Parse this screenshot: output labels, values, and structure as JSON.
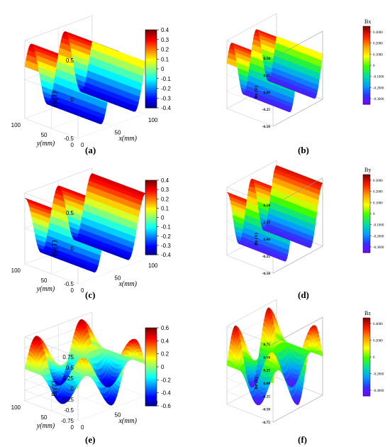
{
  "figure": {
    "captions": [
      "(a)",
      "(b)",
      "(c)",
      "(d)",
      "(e)",
      "(f)"
    ]
  },
  "chart_data": [
    {
      "id": "a",
      "type": "surface3d",
      "style": "matlab",
      "zlabel": "Bx(T)",
      "ylabel": "y(mm)",
      "xlabel": "x(mm)",
      "zticks": [
        "0.5",
        "0",
        "-0.5"
      ],
      "zticks_minor": [
        "0.5",
        "0.25",
        "0",
        "-0.25",
        "-0.5"
      ],
      "zlim": [
        -0.5,
        0.5
      ],
      "yticks": [
        "100",
        "50",
        "0"
      ],
      "xticks": [
        "0",
        "50",
        "100"
      ],
      "colorbar": {
        "ticks": [
          "0.4",
          "0.3",
          "0.2",
          "0.1",
          "0",
          "-0.1",
          "-0.2",
          "-0.3",
          "-0.4"
        ],
        "range": [
          -0.4,
          0.4
        ]
      },
      "colormap": [
        "#00007f",
        "#0000ff",
        "#00bfff",
        "#7fff7f",
        "#ffff00",
        "#ff7f00",
        "#ff0000",
        "#7f0000"
      ]
    },
    {
      "id": "b",
      "type": "surface3d",
      "style": "origin",
      "zlabel": "Bx (T)",
      "legend_title": "Bx",
      "zticks": [
        "0.50",
        "0.25",
        "0.00",
        "-0.25",
        "-0.50"
      ],
      "colorbar": {
        "ticks": [
          "0.3000",
          "0.2000",
          "0.1000",
          "0",
          "-0.1000",
          "-0.2000",
          "-0.3000"
        ]
      },
      "colormap": [
        "#7f00ff",
        "#0040ff",
        "#00c8ff",
        "#00ff40",
        "#ffff00",
        "#ff8000",
        "#ff0000",
        "#8b0000"
      ]
    },
    {
      "id": "c",
      "type": "surface3d",
      "style": "matlab",
      "zlabel": "By(T)",
      "ylabel": "y(mm)",
      "xlabel": "x(mm)",
      "zticks": [
        "0.5",
        "0",
        "-0.5"
      ],
      "yticks": [
        "100",
        "50",
        "0"
      ],
      "xticks": [
        "0",
        "50",
        "100"
      ],
      "colorbar": {
        "ticks": [
          "0.4",
          "0.3",
          "0.2",
          "0.1",
          "0",
          "-0.1",
          "-0.2",
          "-0.3",
          "-0.4"
        ]
      }
    },
    {
      "id": "d",
      "type": "surface3d",
      "style": "origin",
      "zlabel": "By (T)",
      "legend_title": "By",
      "zticks": [
        "0.50",
        "0.25",
        "0.00",
        "-0.25",
        "-0.50"
      ],
      "colorbar": {
        "ticks": [
          "0.3000",
          "0.2000",
          "0.1000",
          "0",
          "-0.1000",
          "-0.2000",
          "-0.3000"
        ]
      }
    },
    {
      "id": "e",
      "type": "surface3d",
      "style": "matlab",
      "zlabel": "Bz(T)",
      "ylabel": "y(mm)",
      "xlabel": "x(mm)",
      "zticks": [
        "0.75",
        "0.5",
        "0.25",
        "0",
        "-0.25",
        "-0.5",
        "-0.75"
      ],
      "yticks": [
        "100",
        "50",
        "0"
      ],
      "xticks": [
        "0",
        "50",
        "100"
      ],
      "colorbar": {
        "ticks": [
          "0.6",
          "0.4",
          "0.2",
          "0",
          "-0.2",
          "-0.4",
          "-0.6"
        ]
      }
    },
    {
      "id": "f",
      "type": "surface3d",
      "style": "origin",
      "zlabel": "Bz (T)",
      "legend_title": "Bz",
      "zticks": [
        "0.75",
        "0.50",
        "0.25",
        "0.00",
        "-0.25",
        "-0.50",
        "-0.75"
      ],
      "colorbar": {
        "ticks": [
          "0.4000",
          "0.2000",
          "0",
          "-0.2000",
          "-0.4000"
        ]
      }
    }
  ]
}
